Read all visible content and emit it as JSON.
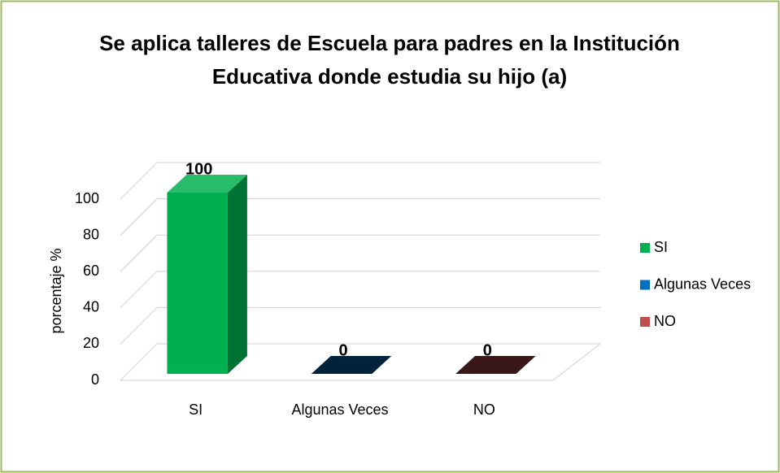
{
  "chart_data": {
    "type": "bar3d",
    "title": "Se aplica talleres de Escuela para padres en la Institución",
    "subtitle": "Educativa donde estudia su hijo (a)",
    "y_label": "porcentaje %",
    "categories": [
      "SI",
      "Algunas Veces",
      "NO"
    ],
    "values": [
      100,
      0,
      0
    ],
    "colors": [
      "#00b050",
      "#0070c0",
      "#c0504d"
    ],
    "ylim": [
      0,
      100
    ],
    "yticks": [
      0,
      20,
      40,
      60,
      80,
      100
    ],
    "grid": true,
    "legend": "right"
  }
}
